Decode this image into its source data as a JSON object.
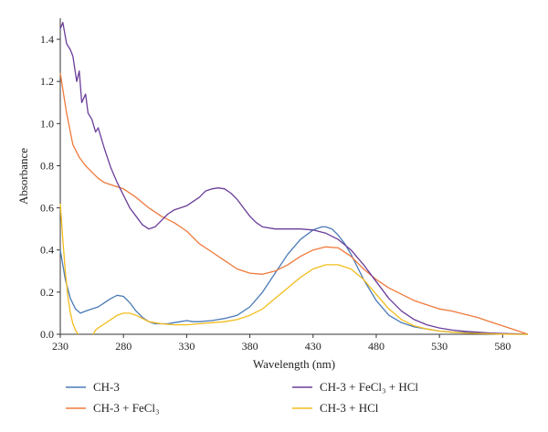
{
  "chart_data": {
    "type": "line",
    "xlabel": "Wavelength (nm)",
    "ylabel": "Absorbance",
    "xlim": [
      230,
      600
    ],
    "ylim": [
      0,
      1.5
    ],
    "x_ticks": [
      "230",
      "280",
      "330",
      "380",
      "430",
      "480",
      "530",
      "580"
    ],
    "y_ticks": [
      "0.0",
      "0.2",
      "0.4",
      "0.6",
      "0.8",
      "1.0",
      "1.2",
      "1.4"
    ],
    "grid": false,
    "legend_position": "bottom",
    "series": [
      {
        "name": "CH-3",
        "color": "#4a7ab8",
        "x": [
          230,
          234,
          238,
          242,
          246,
          250,
          255,
          260,
          265,
          270,
          275,
          280,
          285,
          290,
          295,
          300,
          305,
          310,
          315,
          320,
          325,
          330,
          335,
          340,
          350,
          360,
          370,
          380,
          390,
          400,
          410,
          420,
          430,
          437,
          440,
          445,
          450,
          455,
          460,
          470,
          480,
          490,
          500,
          510,
          520,
          530,
          540,
          550,
          560,
          570,
          580,
          590,
          600
        ],
        "y": [
          0.4,
          0.26,
          0.17,
          0.12,
          0.1,
          0.11,
          0.12,
          0.13,
          0.15,
          0.17,
          0.185,
          0.18,
          0.15,
          0.11,
          0.08,
          0.06,
          0.05,
          0.05,
          0.05,
          0.055,
          0.06,
          0.065,
          0.06,
          0.06,
          0.065,
          0.075,
          0.09,
          0.13,
          0.2,
          0.29,
          0.38,
          0.45,
          0.495,
          0.51,
          0.51,
          0.5,
          0.47,
          0.43,
          0.38,
          0.26,
          0.16,
          0.09,
          0.055,
          0.035,
          0.025,
          0.015,
          0.01,
          0.008,
          0.005,
          0.003,
          0.002,
          0.001,
          0.0
        ]
      },
      {
        "name": "CH-3 + FeCl₃",
        "color": "#ee7a3c",
        "x": [
          230,
          235,
          240,
          245,
          250,
          255,
          260,
          265,
          270,
          275,
          280,
          290,
          300,
          310,
          320,
          330,
          340,
          350,
          360,
          370,
          380,
          390,
          400,
          410,
          420,
          430,
          440,
          450,
          460,
          470,
          480,
          490,
          500,
          510,
          520,
          530,
          540,
          550,
          560,
          570,
          580,
          590,
          600
        ],
        "y": [
          1.24,
          1.05,
          0.9,
          0.84,
          0.8,
          0.77,
          0.74,
          0.72,
          0.71,
          0.7,
          0.69,
          0.65,
          0.6,
          0.56,
          0.53,
          0.49,
          0.43,
          0.39,
          0.35,
          0.31,
          0.29,
          0.285,
          0.3,
          0.33,
          0.37,
          0.4,
          0.415,
          0.41,
          0.37,
          0.31,
          0.26,
          0.22,
          0.19,
          0.16,
          0.14,
          0.12,
          0.11,
          0.095,
          0.08,
          0.06,
          0.04,
          0.02,
          0.0
        ]
      },
      {
        "name": "CH-3 + FeCl₃ + HCl",
        "color": "#6a3d9a",
        "x": [
          230,
          232,
          235,
          238,
          240,
          243,
          245,
          247,
          250,
          252,
          255,
          258,
          260,
          265,
          270,
          275,
          280,
          285,
          290,
          295,
          300,
          305,
          310,
          315,
          320,
          325,
          330,
          340,
          345,
          350,
          355,
          360,
          365,
          370,
          375,
          380,
          385,
          390,
          400,
          410,
          420,
          430,
          440,
          450,
          460,
          470,
          480,
          490,
          500,
          510,
          520,
          530,
          540,
          550,
          560,
          570,
          580,
          590,
          600
        ],
        "y": [
          1.45,
          1.48,
          1.38,
          1.35,
          1.32,
          1.2,
          1.25,
          1.1,
          1.14,
          1.05,
          1.02,
          0.96,
          0.98,
          0.88,
          0.79,
          0.72,
          0.66,
          0.6,
          0.56,
          0.52,
          0.5,
          0.51,
          0.54,
          0.57,
          0.59,
          0.6,
          0.61,
          0.65,
          0.68,
          0.69,
          0.695,
          0.69,
          0.67,
          0.64,
          0.6,
          0.56,
          0.53,
          0.51,
          0.5,
          0.5,
          0.5,
          0.495,
          0.48,
          0.45,
          0.4,
          0.33,
          0.25,
          0.17,
          0.11,
          0.07,
          0.045,
          0.03,
          0.02,
          0.014,
          0.01,
          0.006,
          0.004,
          0.002,
          0.0
        ]
      },
      {
        "name": "CH-3 + HCl",
        "color": "#f2bd1d",
        "x": [
          230,
          232,
          234,
          236,
          238,
          240,
          242,
          244,
          246,
          248,
          250,
          252,
          254,
          256,
          258,
          260,
          265,
          270,
          275,
          280,
          285,
          290,
          295,
          300,
          310,
          320,
          330,
          340,
          350,
          360,
          370,
          380,
          390,
          400,
          410,
          420,
          430,
          440,
          450,
          460,
          470,
          480,
          490,
          500,
          510,
          520,
          530,
          540,
          550,
          560,
          570,
          580,
          590,
          600
        ],
        "y": [
          0.62,
          0.45,
          0.3,
          0.18,
          0.1,
          0.05,
          0.02,
          0.0,
          null,
          null,
          null,
          null,
          null,
          0.0,
          0.02,
          0.03,
          0.05,
          0.07,
          0.09,
          0.1,
          0.1,
          0.09,
          0.075,
          0.06,
          0.05,
          0.045,
          0.045,
          0.05,
          0.055,
          0.06,
          0.07,
          0.09,
          0.12,
          0.17,
          0.22,
          0.27,
          0.31,
          0.33,
          0.33,
          0.31,
          0.26,
          0.19,
          0.12,
          0.07,
          0.04,
          0.025,
          0.015,
          0.01,
          0.006,
          0.004,
          0.002,
          0.001,
          0.0,
          0.0
        ]
      }
    ]
  }
}
